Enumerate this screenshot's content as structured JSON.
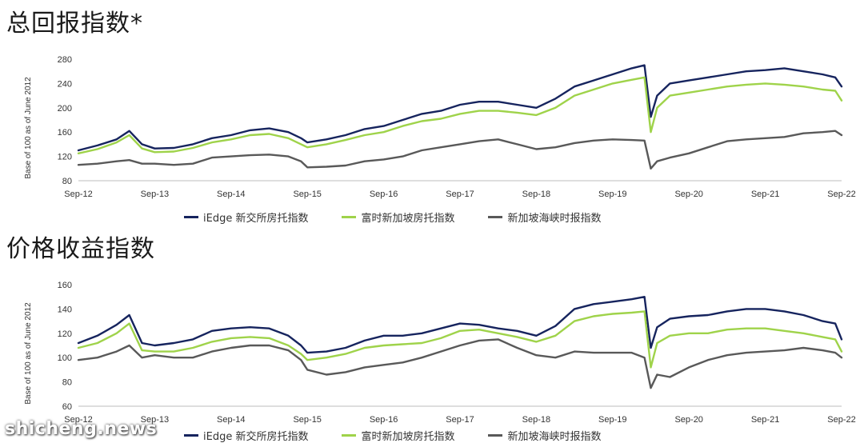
{
  "colors": {
    "navy": "#16245e",
    "green": "#9fd34a",
    "grey": "#595959"
  },
  "watermark": "shicheng.news",
  "chart_data": [
    {
      "type": "line",
      "title": "总回报指数*",
      "ylabel": "Base of 100 as of June 2012",
      "xlabel": "",
      "x_ticks": [
        "Sep-12",
        "Sep-13",
        "Sep-14",
        "Sep-15",
        "Sep-16",
        "Sep-17",
        "Sep-18",
        "Sep-19",
        "Sep-20",
        "Sep-21",
        "Sep-22"
      ],
      "ylim": [
        80,
        280
      ],
      "y_ticks": [
        "80",
        "120",
        "160",
        "200",
        "240",
        "280"
      ],
      "grid": false,
      "legend_position": "bottom",
      "x": [
        "Sep-12",
        "Dec-12",
        "Mar-13",
        "May-13",
        "Jul-13",
        "Sep-13",
        "Dec-13",
        "Mar-14",
        "Jun-14",
        "Sep-14",
        "Dec-14",
        "Mar-15",
        "Jun-15",
        "Aug-15",
        "Sep-15",
        "Dec-15",
        "Mar-16",
        "Jun-16",
        "Sep-16",
        "Dec-16",
        "Mar-17",
        "Jun-17",
        "Sep-17",
        "Dec-17",
        "Mar-18",
        "Jun-18",
        "Sep-18",
        "Dec-18",
        "Mar-19",
        "Jun-19",
        "Sep-19",
        "Dec-19",
        "Feb-20",
        "Mar-20",
        "Apr-20",
        "Jun-20",
        "Sep-20",
        "Dec-20",
        "Mar-21",
        "Jun-21",
        "Sep-21",
        "Dec-21",
        "Mar-22",
        "Jun-22",
        "Aug-22",
        "Sep-22"
      ],
      "series": [
        {
          "name": "iEdge 新交所房托指数",
          "color": "navy",
          "values": [
            130,
            138,
            148,
            162,
            140,
            133,
            134,
            140,
            150,
            155,
            163,
            166,
            160,
            150,
            143,
            148,
            155,
            165,
            170,
            180,
            190,
            195,
            205,
            210,
            210,
            205,
            200,
            215,
            235,
            245,
            255,
            265,
            270,
            185,
            220,
            240,
            245,
            250,
            255,
            260,
            262,
            265,
            260,
            255,
            250,
            235
          ]
        },
        {
          "name": "富时新加坡房托指数",
          "color": "green",
          "values": [
            125,
            132,
            143,
            155,
            133,
            127,
            128,
            134,
            143,
            148,
            155,
            157,
            150,
            140,
            135,
            140,
            147,
            155,
            160,
            170,
            178,
            182,
            190,
            195,
            195,
            192,
            188,
            200,
            220,
            230,
            240,
            246,
            250,
            160,
            200,
            220,
            225,
            230,
            235,
            238,
            240,
            238,
            235,
            230,
            228,
            212
          ]
        },
        {
          "name": "新加坡海峡时报指数",
          "color": "grey",
          "values": [
            106,
            108,
            112,
            114,
            108,
            108,
            106,
            108,
            118,
            120,
            122,
            123,
            120,
            112,
            102,
            103,
            105,
            112,
            115,
            120,
            130,
            135,
            140,
            145,
            148,
            140,
            132,
            135,
            142,
            146,
            148,
            147,
            146,
            100,
            112,
            118,
            125,
            135,
            145,
            148,
            150,
            152,
            158,
            160,
            162,
            155
          ]
        }
      ]
    },
    {
      "type": "line",
      "title": "价格收益指数",
      "ylabel": "Base of 100 as of June 2012",
      "xlabel": "",
      "x_ticks": [
        "Sep-12",
        "Sep-13",
        "Sep-14",
        "Sep-15",
        "Sep-16",
        "Sep-17",
        "Sep-18",
        "Sep-19",
        "Sep-20",
        "Sep-21",
        "Sep-22"
      ],
      "ylim": [
        60,
        160
      ],
      "y_ticks": [
        "60",
        "80",
        "100",
        "120",
        "140",
        "160"
      ],
      "grid": false,
      "legend_position": "bottom",
      "x": [
        "Sep-12",
        "Dec-12",
        "Mar-13",
        "May-13",
        "Jul-13",
        "Sep-13",
        "Dec-13",
        "Mar-14",
        "Jun-14",
        "Sep-14",
        "Dec-14",
        "Mar-15",
        "Jun-15",
        "Aug-15",
        "Sep-15",
        "Dec-15",
        "Mar-16",
        "Jun-16",
        "Sep-16",
        "Dec-16",
        "Mar-17",
        "Jun-17",
        "Sep-17",
        "Dec-17",
        "Mar-18",
        "Jun-18",
        "Sep-18",
        "Dec-18",
        "Mar-19",
        "Jun-19",
        "Sep-19",
        "Dec-19",
        "Feb-20",
        "Mar-20",
        "Apr-20",
        "Jun-20",
        "Sep-20",
        "Dec-20",
        "Mar-21",
        "Jun-21",
        "Sep-21",
        "Dec-21",
        "Mar-22",
        "Jun-22",
        "Aug-22",
        "Sep-22"
      ],
      "series": [
        {
          "name": "iEdge 新交所房托指数",
          "color": "navy",
          "values": [
            112,
            118,
            127,
            135,
            112,
            110,
            112,
            115,
            122,
            124,
            125,
            124,
            118,
            110,
            104,
            105,
            108,
            114,
            118,
            118,
            120,
            124,
            128,
            127,
            124,
            122,
            118,
            126,
            140,
            144,
            146,
            148,
            150,
            108,
            125,
            132,
            134,
            135,
            138,
            140,
            140,
            138,
            135,
            130,
            128,
            115
          ]
        },
        {
          "name": "富时新加坡房托指数",
          "color": "green",
          "values": [
            108,
            112,
            120,
            128,
            106,
            105,
            105,
            108,
            113,
            116,
            117,
            116,
            110,
            103,
            98,
            100,
            103,
            108,
            110,
            111,
            112,
            116,
            122,
            123,
            120,
            117,
            113,
            118,
            130,
            134,
            136,
            137,
            138,
            92,
            112,
            118,
            120,
            120,
            123,
            124,
            124,
            122,
            120,
            117,
            115,
            105
          ]
        },
        {
          "name": "新加坡海峡时报指数",
          "color": "grey",
          "values": [
            98,
            100,
            105,
            110,
            100,
            102,
            100,
            100,
            105,
            108,
            110,
            110,
            106,
            98,
            90,
            86,
            88,
            92,
            94,
            96,
            100,
            105,
            110,
            114,
            115,
            108,
            102,
            100,
            105,
            104,
            104,
            104,
            100,
            75,
            86,
            84,
            92,
            98,
            102,
            104,
            105,
            106,
            108,
            106,
            104,
            100
          ]
        }
      ]
    }
  ]
}
